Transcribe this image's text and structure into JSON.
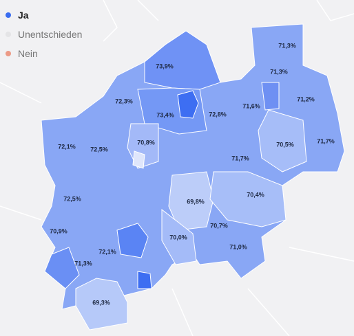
{
  "legend": [
    "Ja",
    "Unentschieden",
    "Nein"
  ],
  "regions": [
    "71,3%",
    "73,9%",
    "71,3%",
    "72,3%",
    "71,6%",
    "71,2%",
    "73,4%",
    "72,8%",
    "72,1%",
    "72,5%",
    "70,8%",
    "70,5%",
    "71,7%",
    "71,7%",
    "69,8%",
    "70,4%",
    "72,5%",
    "70,9%",
    "70,7%",
    "70,0%",
    "72,1%",
    "71,0%",
    "71,3%",
    "69,3%"
  ]
}
